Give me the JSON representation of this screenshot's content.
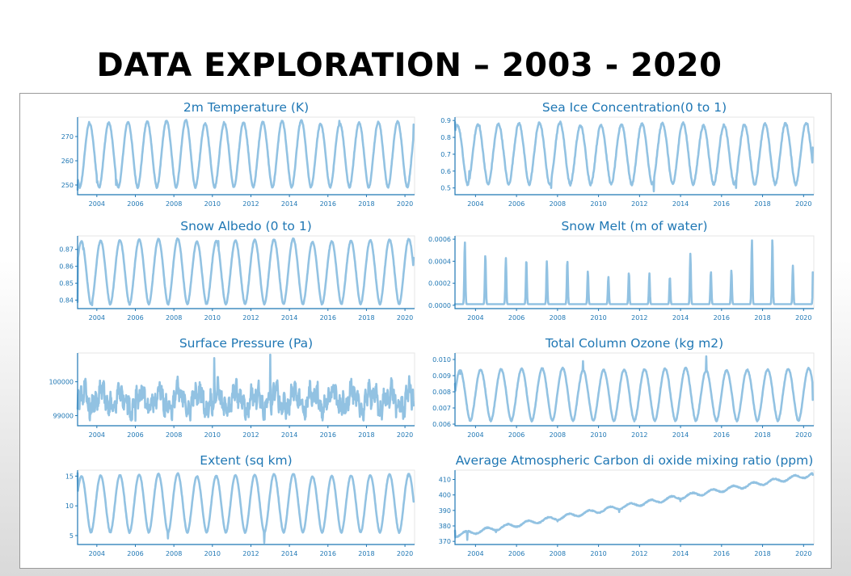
{
  "slide": {
    "title": "DATA EXPLORATION – 2003 - 2020"
  },
  "style": {
    "series_color": "#8cbfe0",
    "axis_color": "#1f77b4",
    "title_color": "#1f77b4"
  },
  "chart_data": [
    {
      "type": "line",
      "title": "2m Temperature (K)",
      "xlim": [
        2003,
        2020.5
      ],
      "ylim": [
        246,
        278
      ],
      "x_ticks": [
        "2004",
        "2006",
        "2008",
        "2010",
        "2012",
        "2014",
        "2016",
        "2018",
        "2020"
      ],
      "y_ticks": [
        250,
        260,
        270
      ],
      "y_tick_labels": [
        "250",
        "260",
        "270"
      ],
      "pattern": "seasonal",
      "min": 249,
      "max": 276,
      "trend": 0,
      "noise": 0.6,
      "sharp": 0,
      "phase": 0.62,
      "start": 2003.0,
      "end": 2020.45,
      "samples": [
        [
          2003.0,
          248
        ],
        [
          2003.6,
          276
        ],
        [
          2004.0,
          251
        ],
        [
          2004.6,
          275.5
        ],
        [
          2005.0,
          250
        ],
        [
          2010.6,
          276
        ],
        [
          2016.6,
          276.5
        ],
        [
          2020.45,
          275
        ]
      ]
    },
    {
      "type": "line",
      "title": "Sea Ice Concentration(0 to 1)",
      "xlim": [
        2003,
        2020.5
      ],
      "ylim": [
        0.46,
        0.92
      ],
      "x_ticks": [
        "2004",
        "2006",
        "2008",
        "2010",
        "2012",
        "2014",
        "2016",
        "2018",
        "2020"
      ],
      "y_ticks": [
        0.5,
        0.6,
        0.7,
        0.8,
        0.9
      ],
      "y_tick_labels": [
        "0.5",
        "0.6",
        "0.7",
        "0.8",
        "0.9"
      ],
      "pattern": "seasonal",
      "min": 0.52,
      "max": 0.88,
      "trend": 0,
      "noise": 0.012,
      "sharp": 0,
      "phase": 0.12,
      "start": 2003.0,
      "end": 2020.45,
      "samples": [
        [
          2003.0,
          0.89
        ],
        [
          2003.7,
          0.6
        ],
        [
          2004.2,
          0.87
        ],
        [
          2007.7,
          0.5
        ],
        [
          2012.7,
          0.48
        ],
        [
          2016.7,
          0.5
        ],
        [
          2020.2,
          0.88
        ],
        [
          2020.45,
          0.74
        ]
      ]
    },
    {
      "type": "line",
      "title": "Snow Albedo (0 to 1)",
      "xlim": [
        2003,
        2020.5
      ],
      "ylim": [
        0.835,
        0.878
      ],
      "x_ticks": [
        "2004",
        "2006",
        "2008",
        "2010",
        "2012",
        "2014",
        "2016",
        "2018",
        "2020"
      ],
      "y_ticks": [
        0.84,
        0.85,
        0.86,
        0.87
      ],
      "y_tick_labels": [
        "0.84",
        "0.85",
        "0.86",
        "0.87"
      ],
      "pattern": "seasonal",
      "min": 0.8375,
      "max": 0.8755,
      "trend": 0,
      "noise": 0.0006,
      "sharp": 0,
      "phase": 0.2,
      "start": 2003.0,
      "end": 2020.45,
      "samples": [
        [
          2003.0,
          0.839
        ],
        [
          2003.3,
          0.87
        ],
        [
          2003.75,
          0.837
        ],
        [
          2010.3,
          0.875
        ],
        [
          2020.45,
          0.865
        ]
      ]
    },
    {
      "type": "line",
      "title": "Snow Melt (m of water)",
      "xlim": [
        2003,
        2020.5
      ],
      "ylim": [
        -3e-05,
        0.00063
      ],
      "x_ticks": [
        "2004",
        "2006",
        "2008",
        "2010",
        "2012",
        "2014",
        "2016",
        "2018",
        "2020"
      ],
      "y_ticks": [
        0,
        0.0002,
        0.0004,
        0.0006
      ],
      "y_tick_labels": [
        "0.0000",
        "0.0002",
        "0.0004",
        "0.0006"
      ],
      "pattern": "spikes",
      "min": 1e-05,
      "max": 0.0005,
      "trend": 0,
      "noise": 0,
      "sharp": 0,
      "phase": 0.48,
      "start": 2003.0,
      "end": 2020.45,
      "peaks": [
        0.00057,
        0.00046,
        0.00043,
        0.00042,
        0.0004,
        0.00041,
        0.00031,
        0.00026,
        0.0003,
        0.00029,
        0.00026,
        0.00047,
        0.00031,
        0.00032,
        0.00059,
        0.00059,
        0.00036,
        0.00046
      ],
      "samples": [
        [
          2003.48,
          0.00057
        ],
        [
          2017.48,
          0.00059
        ],
        [
          2018.48,
          0.00059
        ],
        [
          2020.45,
          0.0003
        ]
      ]
    },
    {
      "type": "line",
      "title": "Surface Pressure (Pa)",
      "xlim": [
        2003,
        2020.5
      ],
      "ylim": [
        98700,
        100850
      ],
      "x_ticks": [
        "2004",
        "2006",
        "2008",
        "2010",
        "2012",
        "2014",
        "2016",
        "2018",
        "2020"
      ],
      "y_ticks": [
        99000,
        100000
      ],
      "y_tick_labels": [
        "99000",
        "100000"
      ],
      "pattern": "noisy",
      "min": 98850,
      "max": 100600,
      "trend": 0,
      "noise": 250,
      "sharp": 0,
      "phase": 0,
      "start": 2003.0,
      "end": 2020.45,
      "samples": [
        [
          2003.0,
          99200
        ],
        [
          2006.0,
          98850
        ],
        [
          2010.1,
          100700
        ],
        [
          2013.0,
          100800
        ],
        [
          2019.9,
          98900
        ],
        [
          2020.45,
          99300
        ]
      ]
    },
    {
      "type": "line",
      "title": "Total Column Ozone (kg m2)",
      "xlim": [
        2003,
        2020.5
      ],
      "ylim": [
        0.0059,
        0.0104
      ],
      "x_ticks": [
        "2004",
        "2006",
        "2008",
        "2010",
        "2012",
        "2014",
        "2016",
        "2018",
        "2020"
      ],
      "y_ticks": [
        0.006,
        0.007,
        0.008,
        0.009,
        0.01
      ],
      "y_tick_labels": [
        "0.006",
        "0.007",
        "0.008",
        "0.009",
        "0.010"
      ],
      "pattern": "seasonal",
      "min": 0.0062,
      "max": 0.0094,
      "trend": 0,
      "noise": 8e-05,
      "sharp": 0,
      "phase": 0.25,
      "start": 2003.0,
      "end": 2020.45,
      "samples": [
        [
          2003.0,
          0.0085
        ],
        [
          2003.25,
          0.0091
        ],
        [
          2003.75,
          0.0062
        ],
        [
          2009.25,
          0.0099
        ],
        [
          2015.25,
          0.0102
        ],
        [
          2020.45,
          0.0075
        ]
      ]
    },
    {
      "type": "line",
      "title": "Extent (sq km)",
      "xlim": [
        2003,
        2020.5
      ],
      "ylim": [
        3.5,
        16
      ],
      "x_ticks": [
        "2004",
        "2006",
        "2008",
        "2010",
        "2012",
        "2014",
        "2016",
        "2018",
        "2020"
      ],
      "y_ticks": [
        5,
        10,
        15
      ],
      "y_tick_labels": [
        "5",
        "10",
        "15"
      ],
      "pattern": "seasonal",
      "min": 5.5,
      "max": 15.2,
      "trend": 0,
      "noise": 0.15,
      "sharp": 0,
      "phase": 0.2,
      "start": 2003.0,
      "end": 2020.45,
      "samples": [
        [
          2003.0,
          15.5
        ],
        [
          2003.7,
          6
        ],
        [
          2007.7,
          4.5
        ],
        [
          2012.7,
          3.8
        ],
        [
          2020.2,
          15
        ],
        [
          2020.45,
          10.7
        ]
      ]
    },
    {
      "type": "line",
      "title": "Average Atmospheric Carbon di oxide mixing ratio (ppm)",
      "xlim": [
        2003,
        2020.5
      ],
      "ylim": [
        368,
        416
      ],
      "x_ticks": [
        "2004",
        "2006",
        "2008",
        "2010",
        "2012",
        "2014",
        "2016",
        "2018",
        "2020"
      ],
      "y_ticks": [
        370,
        380,
        390,
        400,
        410
      ],
      "y_tick_labels": [
        "370",
        "380",
        "390",
        "400",
        "410"
      ],
      "pattern": "trend",
      "min": 0,
      "max": 1.5,
      "trend": 0,
      "noise": 0.6,
      "sharp": 0,
      "phase": 0.3,
      "start": 2003.0,
      "end": 2020.45,
      "samples": [
        [
          2003.0,
          377
        ],
        [
          2003.6,
          371
        ],
        [
          2005,
          376
        ],
        [
          2008,
          383
        ],
        [
          2011,
          389
        ],
        [
          2014,
          396
        ],
        [
          2017,
          404
        ],
        [
          2020.45,
          413
        ]
      ]
    }
  ]
}
